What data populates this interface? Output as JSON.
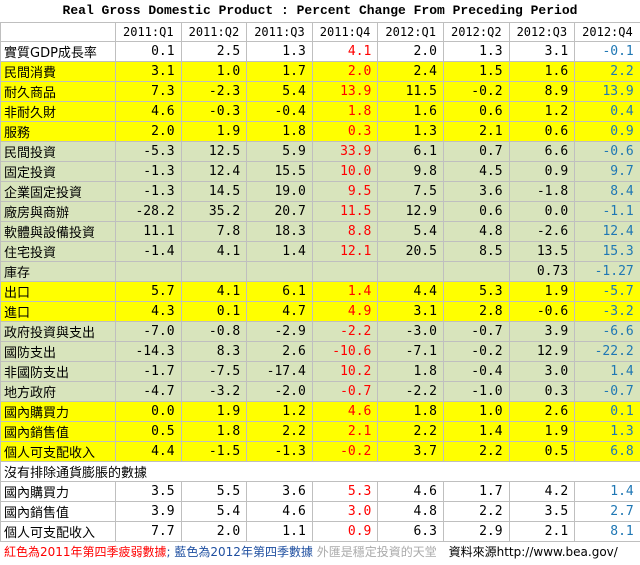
{
  "title": "Real Gross Domestic Product : Percent Change From Preceding Period",
  "columns": [
    "",
    "2011:Q1",
    "2011:Q2",
    "2011:Q3",
    "2011:Q4",
    "2012:Q1",
    "2012:Q2",
    "2012:Q3",
    "2012:Q4"
  ],
  "rows": [
    {
      "label": "實質GDP成長率",
      "bg": "white",
      "values": [
        "0.1",
        "2.5",
        "1.3",
        "4.1",
        "2.0",
        "1.3",
        "3.1",
        "-0.1"
      ]
    },
    {
      "label": "民間消費",
      "bg": "yellow",
      "values": [
        "3.1",
        "1.0",
        "1.7",
        "2.0",
        "2.4",
        "1.5",
        "1.6",
        "2.2"
      ]
    },
    {
      "label": "耐久商品",
      "bg": "yellow",
      "values": [
        "7.3",
        "-2.3",
        "5.4",
        "13.9",
        "11.5",
        "-0.2",
        "8.9",
        "13.9"
      ]
    },
    {
      "label": "非耐久財",
      "bg": "yellow",
      "values": [
        "4.6",
        "-0.3",
        "-0.4",
        "1.8",
        "1.6",
        "0.6",
        "1.2",
        "0.4"
      ]
    },
    {
      "label": "服務",
      "bg": "yellow",
      "values": [
        "2.0",
        "1.9",
        "1.8",
        "0.3",
        "1.3",
        "2.1",
        "0.6",
        "0.9"
      ]
    },
    {
      "label": "民間投資",
      "bg": "green",
      "values": [
        "-5.3",
        "12.5",
        "5.9",
        "33.9",
        "6.1",
        "0.7",
        "6.6",
        "-0.6"
      ]
    },
    {
      "label": "固定投資",
      "bg": "green",
      "values": [
        "-1.3",
        "12.4",
        "15.5",
        "10.0",
        "9.8",
        "4.5",
        "0.9",
        "9.7"
      ]
    },
    {
      "label": "企業固定投資",
      "bg": "green",
      "values": [
        "-1.3",
        "14.5",
        "19.0",
        "9.5",
        "7.5",
        "3.6",
        "-1.8",
        "8.4"
      ]
    },
    {
      "label": "廠房與商辦",
      "bg": "green",
      "values": [
        "-28.2",
        "35.2",
        "20.7",
        "11.5",
        "12.9",
        "0.6",
        "0.0",
        "-1.1"
      ]
    },
    {
      "label": "軟體與設備投資",
      "bg": "green",
      "values": [
        "11.1",
        "7.8",
        "18.3",
        "8.8",
        "5.4",
        "4.8",
        "-2.6",
        "12.4"
      ]
    },
    {
      "label": "住宅投資",
      "bg": "green",
      "values": [
        "-1.4",
        "4.1",
        "1.4",
        "12.1",
        "20.5",
        "8.5",
        "13.5",
        "15.3"
      ]
    },
    {
      "label": "庫存",
      "bg": "green",
      "values": [
        "",
        "",
        "",
        "",
        "",
        "",
        "0.73",
        "-1.27"
      ]
    },
    {
      "label": "出口",
      "bg": "yellow",
      "values": [
        "5.7",
        "4.1",
        "6.1",
        "1.4",
        "4.4",
        "5.3",
        "1.9",
        "-5.7"
      ]
    },
    {
      "label": "進口",
      "bg": "yellow",
      "values": [
        "4.3",
        "0.1",
        "4.7",
        "4.9",
        "3.1",
        "2.8",
        "-0.6",
        "-3.2"
      ]
    },
    {
      "label": "政府投資與支出",
      "bg": "green",
      "values": [
        "-7.0",
        "-0.8",
        "-2.9",
        "-2.2",
        "-3.0",
        "-0.7",
        "3.9",
        "-6.6"
      ]
    },
    {
      "label": "國防支出",
      "bg": "green",
      "values": [
        "-14.3",
        "8.3",
        "2.6",
        "-10.6",
        "-7.1",
        "-0.2",
        "12.9",
        "-22.2"
      ]
    },
    {
      "label": "非國防支出",
      "bg": "green",
      "values": [
        "-1.7",
        "-7.5",
        "-17.4",
        "10.2",
        "1.8",
        "-0.4",
        "3.0",
        "1.4"
      ]
    },
    {
      "label": "地方政府",
      "bg": "green",
      "values": [
        "-4.7",
        "-3.2",
        "-2.0",
        "-0.7",
        "-2.2",
        "-1.0",
        "0.3",
        "-0.7"
      ]
    },
    {
      "label": "國內購買力",
      "bg": "yellow",
      "values": [
        "0.0",
        "1.9",
        "1.2",
        "4.6",
        "1.8",
        "1.0",
        "2.6",
        "0.1"
      ]
    },
    {
      "label": "國內銷售值",
      "bg": "yellow",
      "values": [
        "0.5",
        "1.8",
        "2.2",
        "2.1",
        "2.2",
        "1.4",
        "1.9",
        "1.3"
      ]
    },
    {
      "label": "個人可支配收入",
      "bg": "yellow",
      "values": [
        "4.4",
        "-1.5",
        "-1.3",
        "-0.2",
        "3.7",
        "2.2",
        "0.5",
        "6.8"
      ]
    },
    {
      "label": "沒有排除通貨膨脹的數據",
      "bg": "white",
      "values": [
        "",
        "",
        "",
        "",
        "",
        "",
        "",
        ""
      ]
    },
    {
      "label": "國內購買力",
      "bg": "white",
      "values": [
        "3.5",
        "5.5",
        "3.6",
        "5.3",
        "4.6",
        "1.7",
        "4.2",
        "1.4"
      ]
    },
    {
      "label": "國內銷售值",
      "bg": "white",
      "values": [
        "3.9",
        "5.4",
        "4.6",
        "3.0",
        "4.8",
        "2.2",
        "3.5",
        "2.7"
      ]
    },
    {
      "label": "個人可支配收入",
      "bg": "white",
      "values": [
        "7.7",
        "2.0",
        "1.1",
        "0.9",
        "6.3",
        "2.9",
        "2.1",
        "8.1"
      ]
    }
  ],
  "colors": {
    "highlight_2011_q4": "#ff0000",
    "highlight_2012_q4": "#1f77b4",
    "yellow": "#ffff00",
    "green": "#d8e4bc"
  },
  "footer": {
    "red_note": "紅色為2011年第四季疲弱數據",
    "blue_note": "; 藍色為2012年第四季數據",
    "site": "外匯是穩定投資的天堂",
    "source": "資料來源http://www.bea.gov/"
  }
}
